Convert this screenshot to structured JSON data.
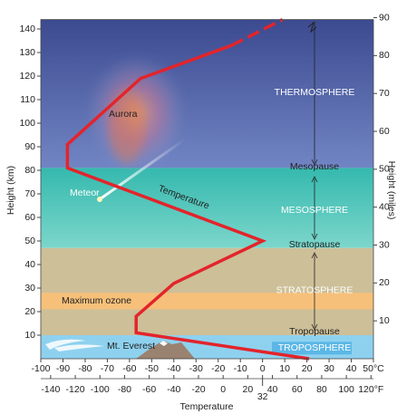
{
  "chart_data": {
    "type": "line",
    "xlabel": "Temperature",
    "ylabel": "Height (km)",
    "y2label": "Height (miles)",
    "xlim": [
      -100,
      50
    ],
    "xticks": [
      -100,
      -90,
      -80,
      -70,
      -60,
      -50,
      -40,
      -30,
      -20,
      -10,
      0,
      10,
      20,
      30,
      40,
      {
        "value": 50,
        "label": "50°C"
      }
    ],
    "x2lim": [
      -148,
      122
    ],
    "x2ticks": [
      -140,
      -120,
      -100,
      -80,
      -60,
      -40,
      -20,
      0,
      20,
      32,
      40,
      60,
      80,
      100,
      {
        "value": 120,
        "label": "120°F"
      }
    ],
    "ylim": [
      0,
      144
    ],
    "yticks": [
      10,
      20,
      30,
      40,
      50,
      60,
      70,
      80,
      90,
      100,
      110,
      120,
      130,
      140
    ],
    "y2lim": [
      0,
      89.5
    ],
    "y2ticks": [
      10,
      20,
      30,
      40,
      50,
      60,
      70,
      80,
      90
    ],
    "series": [
      {
        "color": "#e3242b",
        "style": "solid",
        "x": [
          21,
          -57,
          -57,
          -40,
          0,
          -88,
          -88,
          -55,
          -14
        ],
        "values": [
          0,
          11,
          18,
          32,
          50,
          81,
          91,
          119,
          133
        ]
      },
      {
        "color": "#e3242b",
        "style": "dashed",
        "x": [
          -14,
          9
        ],
        "values": [
          133,
          144
        ]
      }
    ],
    "layers": [
      {
        "name": "THERMOSPHERE",
        "range": [
          81,
          144
        ],
        "color": "#5566a8"
      },
      {
        "name": "MESOSPHERE",
        "range": [
          47,
          81
        ],
        "color": "#4cc4b6"
      },
      {
        "name": "STRATOSPHERE",
        "range": [
          10,
          47
        ],
        "color": "#cdbf98"
      },
      {
        "name": "TROPOSPHERE",
        "range": [
          0,
          10
        ],
        "color": "#8ed1ef"
      }
    ],
    "ozone": {
      "name": "Maximum ozone",
      "range": [
        21,
        28
      ],
      "color": "#f6c07a"
    },
    "pauses": [
      "Mesopause",
      "Stratopause",
      "Tropopause"
    ],
    "annotations": [
      "Aurora",
      "Meteor",
      "Temperature",
      "Mt. Everest"
    ]
  }
}
